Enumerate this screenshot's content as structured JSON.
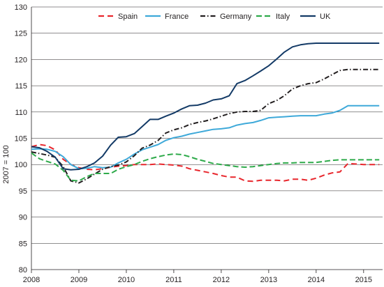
{
  "chart_data": {
    "type": "line",
    "ylabel": "2007 = 100",
    "ylim": [
      80,
      130
    ],
    "yticks": [
      80,
      85,
      90,
      95,
      100,
      105,
      110,
      115,
      120,
      125,
      130
    ],
    "xlim": [
      2008,
      2015.4
    ],
    "xticks": [
      2008,
      2009,
      2010,
      2011,
      2012,
      2013,
      2014,
      2015
    ],
    "xtick_labels": [
      "2008",
      "2009",
      "2010",
      "2011",
      "2012",
      "2013",
      "2014",
      "2015"
    ],
    "grid": "horizontal",
    "legend_position": "top",
    "x": [
      2008.0,
      2008.17,
      2008.33,
      2008.5,
      2008.67,
      2008.83,
      2009.0,
      2009.17,
      2009.33,
      2009.5,
      2009.67,
      2009.83,
      2010.0,
      2010.17,
      2010.33,
      2010.5,
      2010.67,
      2010.83,
      2011.0,
      2011.17,
      2011.33,
      2011.5,
      2011.67,
      2011.83,
      2012.0,
      2012.17,
      2012.33,
      2012.5,
      2012.67,
      2012.83,
      2013.0,
      2013.17,
      2013.33,
      2013.5,
      2013.67,
      2013.83,
      2014.0,
      2014.17,
      2014.33,
      2014.5,
      2014.67,
      2014.83,
      2015.0,
      2015.17,
      2015.33
    ],
    "series": [
      {
        "name": "Spain",
        "color": "#e8262c",
        "dash": "8,5",
        "values": [
          103.4,
          103.8,
          103.6,
          102.8,
          101.0,
          100.0,
          99.4,
          99.1,
          99.0,
          99.2,
          99.5,
          99.7,
          99.8,
          100.0,
          100.0,
          100.0,
          100.1,
          100.0,
          99.9,
          99.7,
          99.2,
          98.9,
          98.6,
          98.3,
          97.9,
          97.6,
          97.6,
          96.9,
          96.8,
          97.0,
          97.0,
          97.0,
          96.9,
          97.2,
          97.2,
          97.0,
          97.4,
          98.0,
          98.4,
          98.6,
          100.2,
          100.1,
          100.0,
          100.0,
          100.0
        ]
      },
      {
        "name": "France",
        "color": "#3ea9d9",
        "dash": "",
        "values": [
          102.9,
          103.0,
          102.9,
          102.5,
          101.5,
          100.0,
          99.2,
          99.3,
          99.6,
          99.4,
          99.5,
          100.3,
          101.0,
          102.0,
          102.8,
          103.3,
          103.8,
          104.6,
          105.1,
          105.4,
          105.8,
          106.1,
          106.4,
          106.7,
          106.8,
          107.0,
          107.5,
          107.8,
          108.0,
          108.4,
          108.9,
          109.0,
          109.1,
          109.2,
          109.3,
          109.3,
          109.3,
          109.6,
          109.8,
          110.3,
          111.2,
          111.2,
          111.2,
          111.2,
          111.2
        ]
      },
      {
        "name": "Germany",
        "color": "#231f20",
        "dash": "7,3,1.5,3",
        "values": [
          102.4,
          102.1,
          101.8,
          101.4,
          99.6,
          96.9,
          96.5,
          97.3,
          98.2,
          99.1,
          99.6,
          99.9,
          100.5,
          101.7,
          103.1,
          103.7,
          104.6,
          106.0,
          106.6,
          107.0,
          107.6,
          108.0,
          108.3,
          108.7,
          109.2,
          109.7,
          110.0,
          110.1,
          110.1,
          110.3,
          111.6,
          112.2,
          113.1,
          114.4,
          115.0,
          115.4,
          115.6,
          116.3,
          117.1,
          117.9,
          118.1,
          118.1,
          118.1,
          118.1,
          118.1
        ]
      },
      {
        "name": "Italy",
        "color": "#2eaa4a",
        "dash": "8,4",
        "values": [
          102.2,
          101.1,
          100.6,
          100.1,
          98.9,
          97.0,
          96.9,
          97.7,
          98.3,
          98.3,
          98.3,
          99.1,
          99.6,
          100.0,
          100.6,
          101.1,
          101.5,
          101.8,
          102.0,
          101.9,
          101.5,
          101.0,
          100.6,
          100.2,
          100.0,
          99.8,
          99.6,
          99.5,
          99.6,
          99.8,
          100.0,
          100.2,
          100.3,
          100.3,
          100.4,
          100.4,
          100.4,
          100.6,
          100.8,
          100.9,
          100.9,
          100.9,
          100.9,
          100.9,
          100.9
        ]
      },
      {
        "name": "UK",
        "color": "#133a66",
        "dash": "",
        "values": [
          103.4,
          103.2,
          102.5,
          101.4,
          99.2,
          99.0,
          99.1,
          99.6,
          100.3,
          101.6,
          103.7,
          105.2,
          105.3,
          105.9,
          107.2,
          108.6,
          108.6,
          109.2,
          109.8,
          110.6,
          111.2,
          111.3,
          111.7,
          112.3,
          112.5,
          113.1,
          115.4,
          116.0,
          116.9,
          117.8,
          118.8,
          120.1,
          121.4,
          122.4,
          122.8,
          123.0,
          123.1,
          123.1,
          123.1,
          123.1,
          123.1,
          123.1,
          123.1,
          123.1,
          123.1
        ]
      }
    ]
  }
}
